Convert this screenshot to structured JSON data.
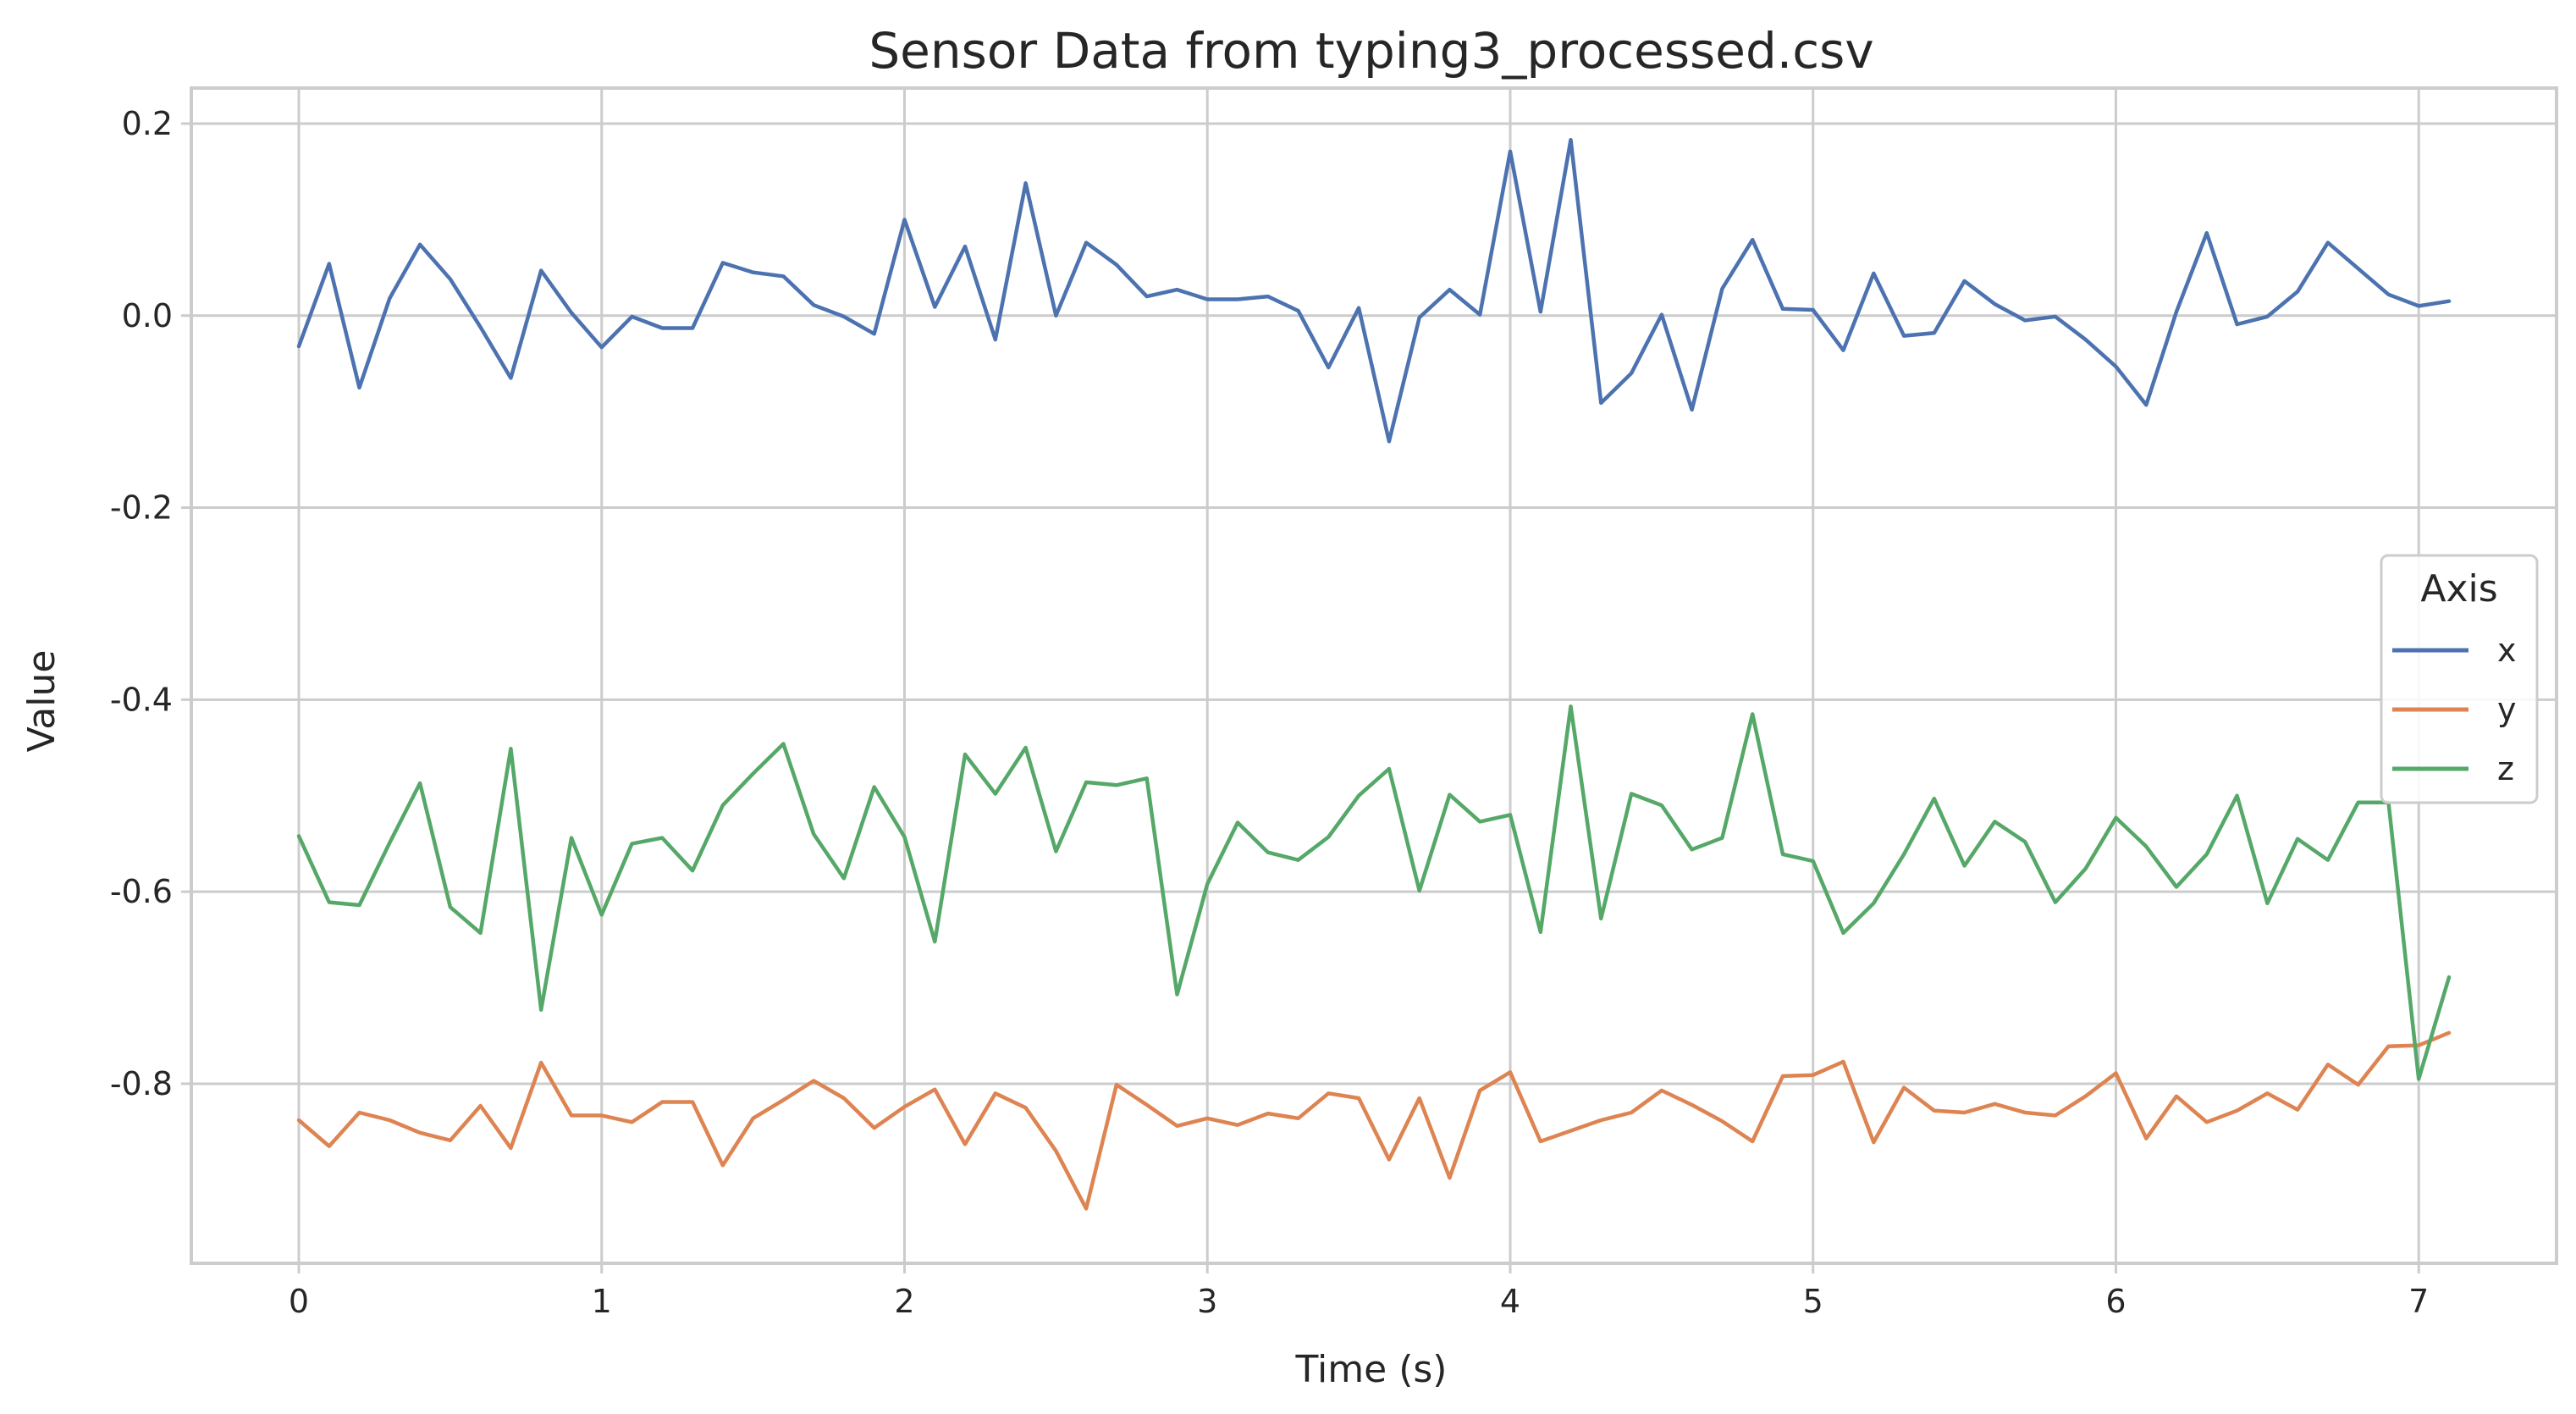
{
  "chart_data": {
    "type": "line",
    "title": "Sensor Data from typing3_processed.csv",
    "xlabel": "Time (s)",
    "ylabel": "Value",
    "xlim": [
      -0.355,
      7.455
    ],
    "ylim": [
      -0.987,
      0.237
    ],
    "xticks": [
      0,
      1,
      2,
      3,
      4,
      5,
      6,
      7
    ],
    "xtick_labels": [
      "0",
      "1",
      "2",
      "3",
      "4",
      "5",
      "6",
      "7"
    ],
    "yticks": [
      0.2,
      0.0,
      -0.2,
      -0.4,
      -0.6,
      -0.8
    ],
    "ytick_labels": [
      "0.2",
      "0.0",
      "-0.2",
      "-0.4",
      "-0.6",
      "-0.8"
    ],
    "grid": true,
    "legend": {
      "title": "Axis",
      "position": "center-right"
    },
    "x": [
      0.0,
      0.1,
      0.2,
      0.3,
      0.4,
      0.5,
      0.6,
      0.7,
      0.8,
      0.9,
      1.0,
      1.1,
      1.2,
      1.3,
      1.4,
      1.5,
      1.6,
      1.7,
      1.8,
      1.9,
      2.0,
      2.1,
      2.2,
      2.3,
      2.4,
      2.5,
      2.6,
      2.7,
      2.8,
      2.9,
      3.0,
      3.1,
      3.2,
      3.3,
      3.4,
      3.5,
      3.6,
      3.7,
      3.8,
      3.9,
      4.0,
      4.1,
      4.2,
      4.3,
      4.4,
      4.5,
      4.6,
      4.7,
      4.8,
      4.9,
      5.0,
      5.1,
      5.2,
      5.3,
      5.4,
      5.5,
      5.6,
      5.7,
      5.8,
      5.9,
      6.0,
      6.1,
      6.2,
      6.3,
      6.4,
      6.5,
      6.6,
      6.7,
      6.8,
      6.9,
      7.0,
      7.1
    ],
    "series": [
      {
        "name": "x",
        "color": "#4c72b0",
        "values": [
          -0.032,
          0.054,
          -0.075,
          0.018,
          0.074,
          0.038,
          -0.012,
          -0.065,
          0.047,
          0.003,
          -0.033,
          -0.001,
          -0.013,
          -0.013,
          0.055,
          0.045,
          0.041,
          0.011,
          -0.001,
          -0.019,
          0.1,
          0.009,
          0.072,
          -0.025,
          0.138,
          0.0,
          0.076,
          0.053,
          0.02,
          0.027,
          0.017,
          0.017,
          0.02,
          0.005,
          -0.054,
          0.008,
          -0.131,
          -0.002,
          0.027,
          0.001,
          0.171,
          0.004,
          0.183,
          -0.091,
          -0.06,
          0.001,
          -0.098,
          0.028,
          0.079,
          0.007,
          0.006,
          -0.036,
          0.044,
          -0.021,
          -0.018,
          0.036,
          0.012,
          -0.005,
          -0.001,
          -0.025,
          -0.053,
          -0.093,
          0.004,
          0.086,
          -0.009,
          -0.001,
          0.025,
          0.076,
          0.049,
          0.022,
          0.01,
          0.015
        ]
      },
      {
        "name": "y",
        "color": "#dd8452",
        "values": [
          -0.838,
          -0.865,
          -0.83,
          -0.838,
          -0.851,
          -0.859,
          -0.823,
          -0.867,
          -0.778,
          -0.833,
          -0.833,
          -0.84,
          -0.819,
          -0.819,
          -0.885,
          -0.836,
          -0.817,
          -0.797,
          -0.815,
          -0.846,
          -0.824,
          -0.806,
          -0.863,
          -0.81,
          -0.825,
          -0.87,
          -0.93,
          -0.801,
          -0.822,
          -0.844,
          -0.836,
          -0.843,
          -0.831,
          -0.836,
          -0.81,
          -0.815,
          -0.879,
          -0.815,
          -0.898,
          -0.807,
          -0.788,
          -0.86,
          -0.849,
          -0.838,
          -0.83,
          -0.807,
          -0.822,
          -0.839,
          -0.86,
          -0.792,
          -0.791,
          -0.777,
          -0.861,
          -0.804,
          -0.828,
          -0.83,
          -0.821,
          -0.83,
          -0.833,
          -0.813,
          -0.789,
          -0.857,
          -0.813,
          -0.84,
          -0.828,
          -0.81,
          -0.827,
          -0.78,
          -0.801,
          -0.761,
          -0.76,
          -0.747
        ]
      },
      {
        "name": "z",
        "color": "#55a868",
        "values": [
          -0.542,
          -0.611,
          -0.614,
          -0.549,
          -0.487,
          -0.616,
          -0.643,
          -0.451,
          -0.723,
          -0.544,
          -0.624,
          -0.55,
          -0.544,
          -0.578,
          -0.51,
          -0.477,
          -0.446,
          -0.54,
          -0.586,
          -0.491,
          -0.543,
          -0.652,
          -0.457,
          -0.498,
          -0.45,
          -0.558,
          -0.486,
          -0.489,
          -0.482,
          -0.707,
          -0.592,
          -0.528,
          -0.559,
          -0.567,
          -0.543,
          -0.5,
          -0.472,
          -0.599,
          -0.499,
          -0.527,
          -0.52,
          -0.642,
          -0.407,
          -0.628,
          -0.498,
          -0.51,
          -0.556,
          -0.544,
          -0.415,
          -0.561,
          -0.568,
          -0.643,
          -0.612,
          -0.561,
          -0.503,
          -0.573,
          -0.527,
          -0.548,
          -0.611,
          -0.576,
          -0.523,
          -0.553,
          -0.595,
          -0.561,
          -0.5,
          -0.612,
          -0.545,
          -0.567,
          -0.507,
          -0.507,
          -0.795,
          -0.689
        ]
      }
    ]
  }
}
